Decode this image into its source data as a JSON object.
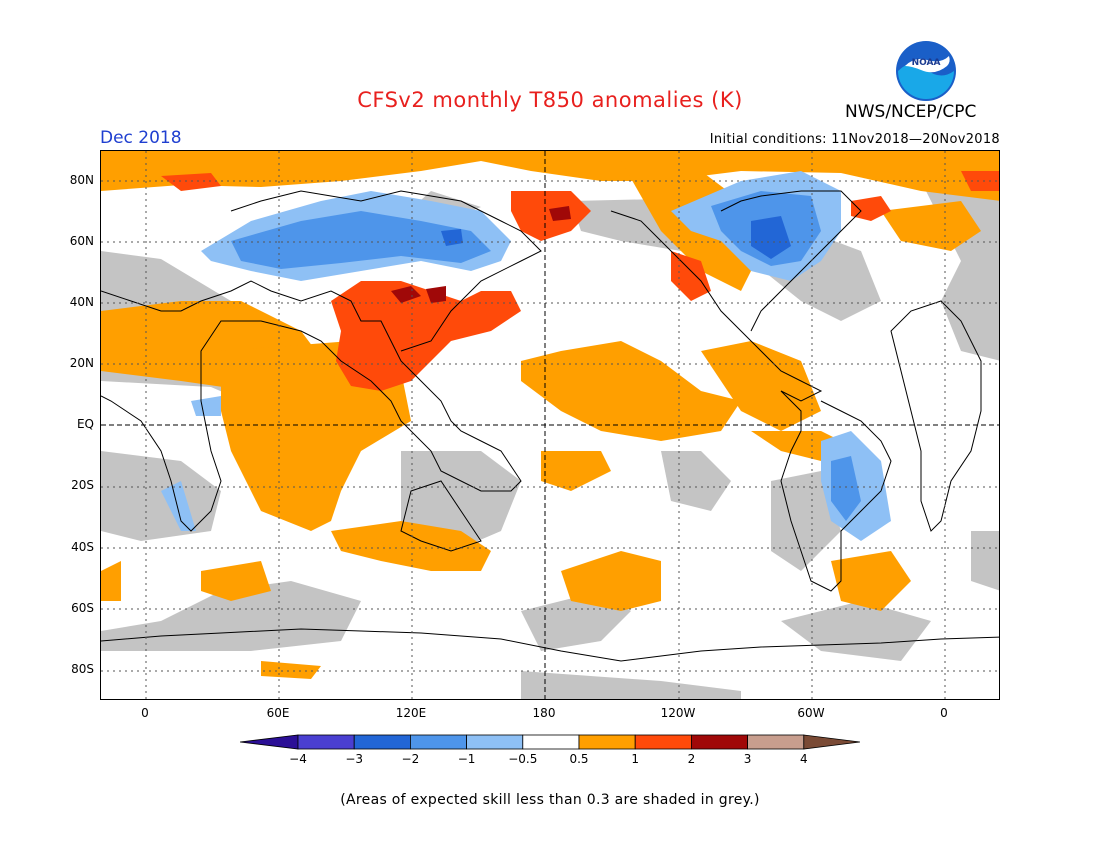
{
  "title": "CFSv2 monthly T850 anomalies (K)",
  "org": "NWS/NCEP/CPC",
  "logo_text": "NOAA",
  "month": "Dec 2018",
  "initial_conditions": "Initial conditions: 11Nov2018—20Nov2018",
  "lat_labels": [
    "80N",
    "60N",
    "40N",
    "20N",
    "EQ",
    "20S",
    "40S",
    "60S",
    "80S"
  ],
  "lon_labels": [
    "0",
    "60E",
    "120E",
    "180",
    "120W",
    "60W",
    "0"
  ],
  "legend": {
    "labels": [
      "−4",
      "−3",
      "−2",
      "−1",
      "−0.5",
      "0.5",
      "1",
      "2",
      "3",
      "4"
    ],
    "colors": [
      "#2b0f96",
      "#4a3fd1",
      "#2266d6",
      "#4e95ea",
      "#8ec0f5",
      "#ffffff",
      "#ff9f00",
      "#ff4a0a",
      "#a00808",
      "#c89e8e",
      "#7a4a35"
    ]
  },
  "skill_color": "#c4c4c4",
  "note": "(Areas of expected skill less than 0.3 are shaded in grey.)"
}
